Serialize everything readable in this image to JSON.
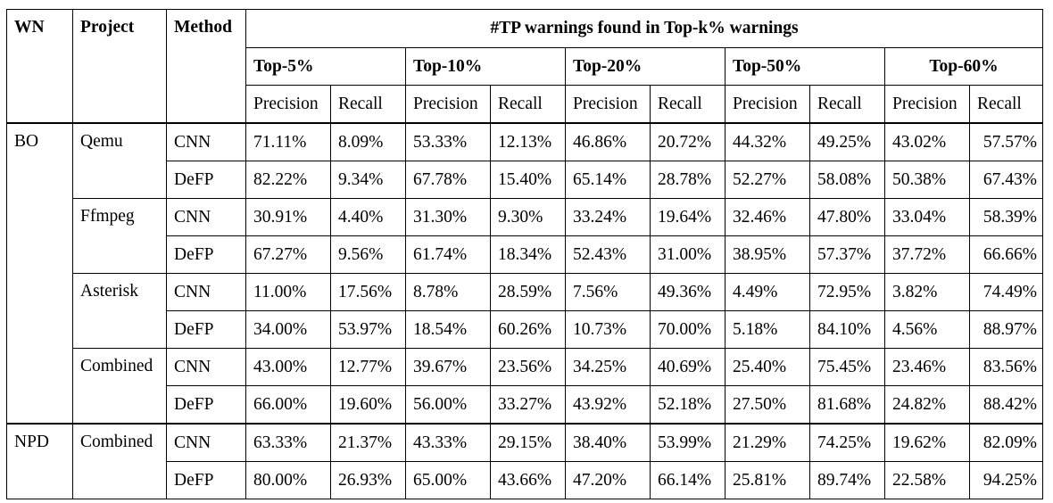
{
  "header": {
    "wn": "WN",
    "project": "Project",
    "method": "Method",
    "main": "#TP warnings found in Top-k% warnings",
    "groups": [
      "Top-5%",
      "Top-10%",
      "Top-20%",
      "Top-50%",
      "Top-60%"
    ],
    "precision": "Precision",
    "recall": "Recall"
  },
  "rows": [
    {
      "wn": "BO",
      "project": "Qemu",
      "method": "CNN",
      "values": [
        "71.11%",
        "8.09%",
        "53.33%",
        "12.13%",
        "46.86%",
        "20.72%",
        "44.32%",
        "49.25%",
        "43.02%",
        "57.57%"
      ]
    },
    {
      "wn": "",
      "project": "",
      "method": "DeFP",
      "values": [
        "82.22%",
        "9.34%",
        "67.78%",
        "15.40%",
        "65.14%",
        "28.78%",
        "52.27%",
        "58.08%",
        "50.38%",
        "67.43%"
      ]
    },
    {
      "wn": "",
      "project": "Ffmpeg",
      "method": "CNN",
      "values": [
        "30.91%",
        "4.40%",
        "31.30%",
        "9.30%",
        "33.24%",
        "19.64%",
        "32.46%",
        "47.80%",
        "33.04%",
        "58.39%"
      ]
    },
    {
      "wn": "",
      "project": "",
      "method": "DeFP",
      "values": [
        "67.27%",
        "9.56%",
        "61.74%",
        "18.34%",
        "52.43%",
        "31.00%",
        "38.95%",
        "57.37%",
        "37.72%",
        "66.66%"
      ]
    },
    {
      "wn": "",
      "project": "Asterisk",
      "method": "CNN",
      "values": [
        "11.00%",
        "17.56%",
        "8.78%",
        "28.59%",
        "7.56%",
        "49.36%",
        "4.49%",
        "72.95%",
        "3.82%",
        "74.49%"
      ]
    },
    {
      "wn": "",
      "project": "",
      "method": "DeFP",
      "values": [
        "34.00%",
        "53.97%",
        "18.54%",
        "60.26%",
        "10.73%",
        "70.00%",
        "5.18%",
        "84.10%",
        "4.56%",
        "88.97%"
      ]
    },
    {
      "wn": "",
      "project": "Combined",
      "method": "CNN",
      "values": [
        "43.00%",
        "12.77%",
        "39.67%",
        "23.56%",
        "34.25%",
        "40.69%",
        "25.40%",
        "75.45%",
        "23.46%",
        "83.56%"
      ]
    },
    {
      "wn": "",
      "project": "",
      "method": "DeFP",
      "values": [
        "66.00%",
        "19.60%",
        "56.00%",
        "33.27%",
        "43.92%",
        "52.18%",
        "27.50%",
        "81.68%",
        "24.82%",
        "88.42%"
      ]
    },
    {
      "wn": "NPD",
      "project": "Combined",
      "method": "CNN",
      "values": [
        "63.33%",
        "21.37%",
        "43.33%",
        "29.15%",
        "38.40%",
        "53.99%",
        "21.29%",
        "74.25%",
        "19.62%",
        "82.09%"
      ]
    },
    {
      "wn": "",
      "project": "",
      "method": "DeFP",
      "values": [
        "80.00%",
        "26.93%",
        "65.00%",
        "43.66%",
        "47.20%",
        "66.14%",
        "25.81%",
        "89.74%",
        "22.58%",
        "94.25%"
      ]
    }
  ]
}
